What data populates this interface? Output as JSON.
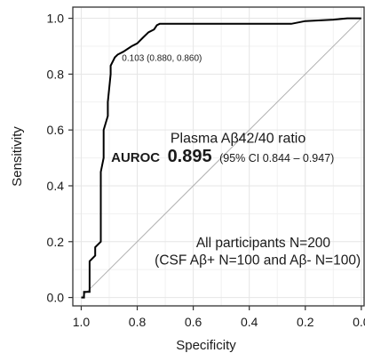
{
  "chart_data": {
    "type": "line",
    "title": "",
    "xlabel": "Specificity",
    "ylabel": "Sensitivity",
    "xlim": [
      1.03,
      -0.01
    ],
    "ylim": [
      -0.03,
      1.04
    ],
    "x_reversed": true,
    "grid": true,
    "x_ticks": [
      1.0,
      0.8,
      0.6,
      0.4,
      0.2,
      0.0
    ],
    "x_tick_labels": [
      "1.0",
      "0.8",
      "0.6",
      "0.4",
      "0.2",
      "0.0"
    ],
    "y_ticks": [
      0.0,
      0.2,
      0.4,
      0.6,
      0.8,
      1.0
    ],
    "y_tick_labels": [
      "0.0",
      "0.2",
      "0.4",
      "0.6",
      "0.8",
      "1.0"
    ],
    "colors": {
      "roc": "#000000",
      "diagonal": "#b0b0b0",
      "grid": "#e6e6e6",
      "panel_border": "#333333"
    },
    "series": [
      {
        "x": [
          1.0,
          0.99,
          0.99,
          0.97,
          0.97,
          0.95,
          0.95,
          0.93,
          0.93,
          0.92,
          0.92,
          0.905,
          0.905,
          0.895,
          0.895,
          0.88,
          0.87,
          0.85,
          0.82,
          0.8,
          0.78,
          0.76,
          0.74,
          0.73,
          0.72,
          0.3,
          0.25,
          0.2,
          0.1,
          0.05,
          0.02,
          0.01,
          0.0
        ],
        "y": [
          0.0,
          0.0,
          0.02,
          0.02,
          0.13,
          0.15,
          0.18,
          0.2,
          0.45,
          0.5,
          0.6,
          0.65,
          0.7,
          0.8,
          0.83,
          0.86,
          0.87,
          0.88,
          0.9,
          0.91,
          0.93,
          0.95,
          0.96,
          0.975,
          0.98,
          0.98,
          0.98,
          0.99,
          0.995,
          1.0,
          1.0,
          1.0,
          1.0
        ]
      },
      {
        "x": [
          1.0,
          0.0
        ],
        "y": [
          0.0,
          1.0
        ]
      }
    ],
    "threshold": {
      "label": "0.103 (0.880, 0.860)",
      "x": 0.88,
      "y": 0.86
    },
    "annotations": {
      "marker": "Plasma Aβ42/40 ratio",
      "auroc_label": "AUROC",
      "auroc_value": "0.895",
      "auroc_ci": "(95% CI 0.844 – 0.947)",
      "cohort_line1": "All participants N=200",
      "cohort_line2": "(CSF Aβ+ N=100 and Aβ- N=100)"
    }
  }
}
